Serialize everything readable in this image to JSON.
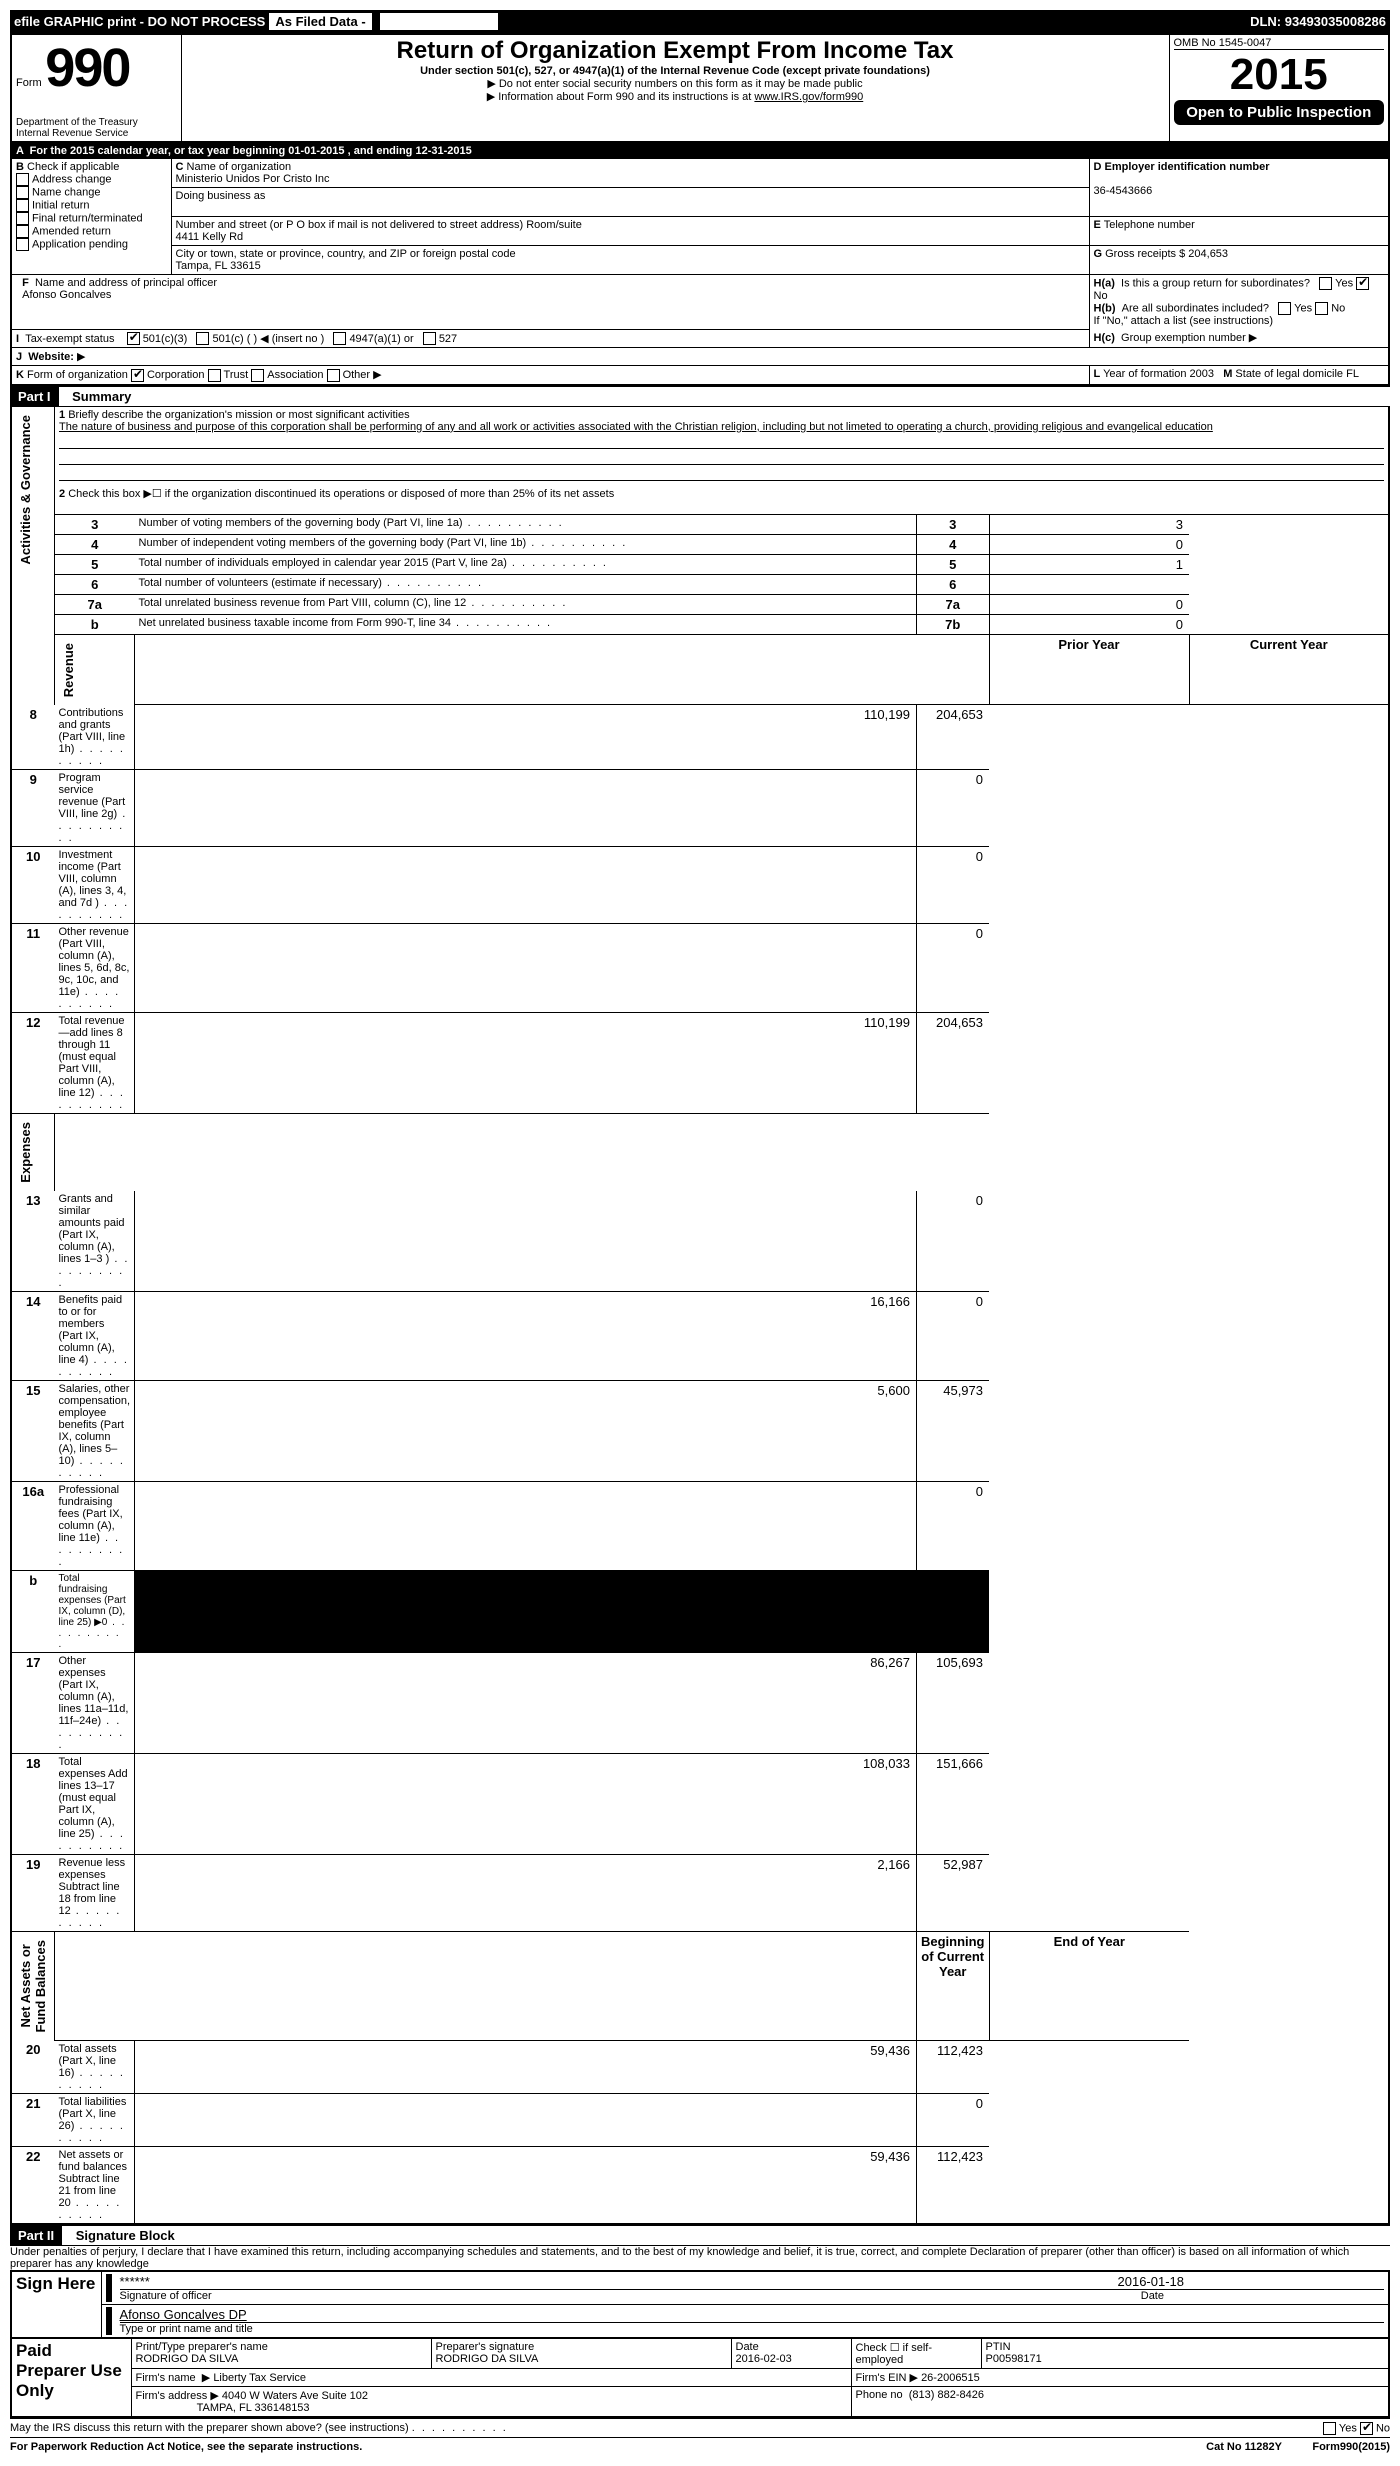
{
  "topbar": {
    "efile": "efile GRAPHIC print - DO NOT PROCESS",
    "asfiled": "As Filed Data -",
    "dln_label": "DLN:",
    "dln": "93493035008286"
  },
  "header": {
    "form": "Form",
    "num": "990",
    "dept": "Department of the Treasury",
    "irs": "Internal Revenue Service",
    "title": "Return of Organization Exempt From Income Tax",
    "subtitle": "Under section 501(c), 527, or 4947(a)(1) of the Internal Revenue Code (except private foundations)",
    "note1": "Do not enter social security numbers on this form as it may be made public",
    "note2": "Information about Form 990 and its instructions is at",
    "link": "www.IRS.gov/form990",
    "omb": "OMB No 1545-0047",
    "year": "2015",
    "open": "Open to Public Inspection"
  },
  "A": {
    "label": "For the 2015 calendar year, or tax year beginning",
    "begin": "01-01-2015",
    "mid": ", and ending",
    "end": "12-31-2015"
  },
  "B": {
    "label": "Check if applicable",
    "opts": [
      "Address change",
      "Name change",
      "Initial return",
      "Final return/terminated",
      "Amended return",
      "Application pending"
    ]
  },
  "C": {
    "name_lbl": "Name of organization",
    "name": "Ministerio Unidos Por Cristo Inc",
    "dba_lbl": "Doing business as",
    "addr_lbl": "Number and street (or P O  box if mail is not delivered to street address)  Room/suite",
    "addr": "4411 Kelly Rd",
    "city_lbl": "City or town, state or province, country, and ZIP or foreign postal code",
    "city": "Tampa, FL  33615"
  },
  "D": {
    "lbl": "Employer identification number",
    "val": "36-4543666"
  },
  "E": {
    "lbl": "Telephone number",
    "val": ""
  },
  "G": {
    "lbl": "Gross receipts $",
    "val": "204,653"
  },
  "F": {
    "lbl": "Name and address of principal officer",
    "val": "Afonso Goncalves"
  },
  "H": {
    "a": "Is this a group return for subordinates?",
    "b": "Are all subordinates included?",
    "note": "If \"No,\" attach a list  (see instructions)",
    "c": "Group exemption number"
  },
  "I": {
    "lbl": "Tax-exempt status",
    "o1": "501(c)(3)",
    "o2": "501(c) (  )",
    "o2b": "(insert no )",
    "o3": "4947(a)(1) or",
    "o4": "527"
  },
  "J": {
    "lbl": "Website:"
  },
  "K": {
    "lbl": "Form of organization",
    "o1": "Corporation",
    "o2": "Trust",
    "o3": "Association",
    "o4": "Other"
  },
  "L": {
    "lbl": "Year of formation",
    "val": "2003"
  },
  "M": {
    "lbl": "State of legal domicile",
    "val": "FL"
  },
  "partI": {
    "hdr": "Part I",
    "title": "Summary",
    "q1": "Briefly describe the organization's mission or most significant activities",
    "mission": "The nature of business and purpose of this corporation shall be performing of any and all work or activities associated with the Christian religion, including but not limeted to operating a church, providing religious and evangelical education",
    "q2": "Check this box ▶☐ if the organization discontinued its operations or disposed of more than 25% of its net assets",
    "rows_gov": [
      {
        "n": "3",
        "t": "Number of voting members of the governing body (Part VI, line 1a)",
        "c": "3",
        "v": "3"
      },
      {
        "n": "4",
        "t": "Number of independent voting members of the governing body (Part VI, line 1b)",
        "c": "4",
        "v": "0"
      },
      {
        "n": "5",
        "t": "Total number of individuals employed in calendar year 2015 (Part V, line 2a)",
        "c": "5",
        "v": "1"
      },
      {
        "n": "6",
        "t": "Total number of volunteers (estimate if necessary)",
        "c": "6",
        "v": ""
      },
      {
        "n": "7a",
        "t": "Total unrelated business revenue from Part VIII, column (C), line 12",
        "c": "7a",
        "v": "0"
      },
      {
        "n": "b",
        "t": "Net unrelated business taxable income from Form 990-T, line 34",
        "c": "7b",
        "v": "0"
      }
    ],
    "hdr_prior": "Prior Year",
    "hdr_curr": "Current Year",
    "rows_rev": [
      {
        "n": "8",
        "t": "Contributions and grants (Part VIII, line 1h)",
        "p": "110,199",
        "c": "204,653"
      },
      {
        "n": "9",
        "t": "Program service revenue (Part VIII, line 2g)",
        "p": "",
        "c": "0"
      },
      {
        "n": "10",
        "t": "Investment income (Part VIII, column (A), lines 3, 4, and 7d )",
        "p": "",
        "c": "0"
      },
      {
        "n": "11",
        "t": "Other revenue (Part VIII, column (A), lines 5, 6d, 8c, 9c, 10c, and 11e)",
        "p": "",
        "c": "0"
      },
      {
        "n": "12",
        "t": "Total revenue—add lines 8 through 11 (must equal Part VIII, column (A), line 12)",
        "p": "110,199",
        "c": "204,653"
      }
    ],
    "rows_exp": [
      {
        "n": "13",
        "t": "Grants and similar amounts paid (Part IX, column (A), lines 1–3 )",
        "p": "",
        "c": "0"
      },
      {
        "n": "14",
        "t": "Benefits paid to or for members (Part IX, column (A), line 4)",
        "p": "16,166",
        "c": "0"
      },
      {
        "n": "15",
        "t": "Salaries, other compensation, employee benefits (Part IX, column (A), lines 5–10)",
        "p": "5,600",
        "c": "45,973"
      },
      {
        "n": "16a",
        "t": "Professional fundraising fees (Part IX, column (A), line 11e)",
        "p": "",
        "c": "0"
      },
      {
        "n": "b",
        "t": "Total fundraising expenses (Part IX, column (D), line 25) ▶0",
        "p": "BLACK",
        "c": "BLACK"
      },
      {
        "n": "17",
        "t": "Other expenses (Part IX, column (A), lines 11a–11d, 11f–24e)",
        "p": "86,267",
        "c": "105,693"
      },
      {
        "n": "18",
        "t": "Total expenses  Add lines 13–17 (must equal Part IX, column (A), line 25)",
        "p": "108,033",
        "c": "151,666"
      },
      {
        "n": "19",
        "t": "Revenue less expenses  Subtract line 18 from line 12",
        "p": "2,166",
        "c": "52,987"
      }
    ],
    "hdr_beg": "Beginning of Current Year",
    "hdr_end": "End of Year",
    "rows_net": [
      {
        "n": "20",
        "t": "Total assets (Part X, line 16)",
        "p": "59,436",
        "c": "112,423"
      },
      {
        "n": "21",
        "t": "Total liabilities (Part X, line 26)",
        "p": "",
        "c": "0"
      },
      {
        "n": "22",
        "t": "Net assets or fund balances  Subtract line 21 from line 20",
        "p": "59,436",
        "c": "112,423"
      }
    ]
  },
  "partII": {
    "hdr": "Part II",
    "title": "Signature Block",
    "decl": "Under penalties of perjury, I declare that I have examined this return, including accompanying schedules and statements, and to the best of my knowledge and belief, it is true, correct, and complete  Declaration of preparer (other than officer) is based on all information of which preparer has any knowledge"
  },
  "sign": {
    "here": "Sign Here",
    "stars": "******",
    "sig_lbl": "Signature of officer",
    "date": "2016-01-18",
    "date_lbl": "Date",
    "name": "Afonso Goncalves DP",
    "name_lbl": "Type or print name and title"
  },
  "paid": {
    "lbl": "Paid Preparer Use Only",
    "prep_name_lbl": "Print/Type preparer's name",
    "prep_name": "RODRIGO DA SILVA",
    "prep_sig_lbl": "Preparer's signature",
    "prep_sig": "RODRIGO DA SILVA",
    "prep_date_lbl": "Date",
    "prep_date": "2016-02-03",
    "self_lbl": "Check ☐ if self-employed",
    "ptin_lbl": "PTIN",
    "ptin": "P00598171",
    "firm_name_lbl": "Firm's name",
    "firm_name": "Liberty Tax Service",
    "firm_ein_lbl": "Firm's EIN",
    "firm_ein": "26-2006515",
    "firm_addr_lbl": "Firm's address",
    "firm_addr": "4040 W Waters Ave Suite 102",
    "firm_city": "TAMPA, FL  336148153",
    "phone_lbl": "Phone no",
    "phone": "(813) 882-8426"
  },
  "footer": {
    "discuss": "May the IRS discuss this return with the preparer shown above? (see instructions)",
    "pra": "For Paperwork Reduction Act Notice, see the separate instructions.",
    "cat": "Cat No  11282Y",
    "form": "Form990(2015)",
    "yes": "Yes",
    "no": "No"
  }
}
